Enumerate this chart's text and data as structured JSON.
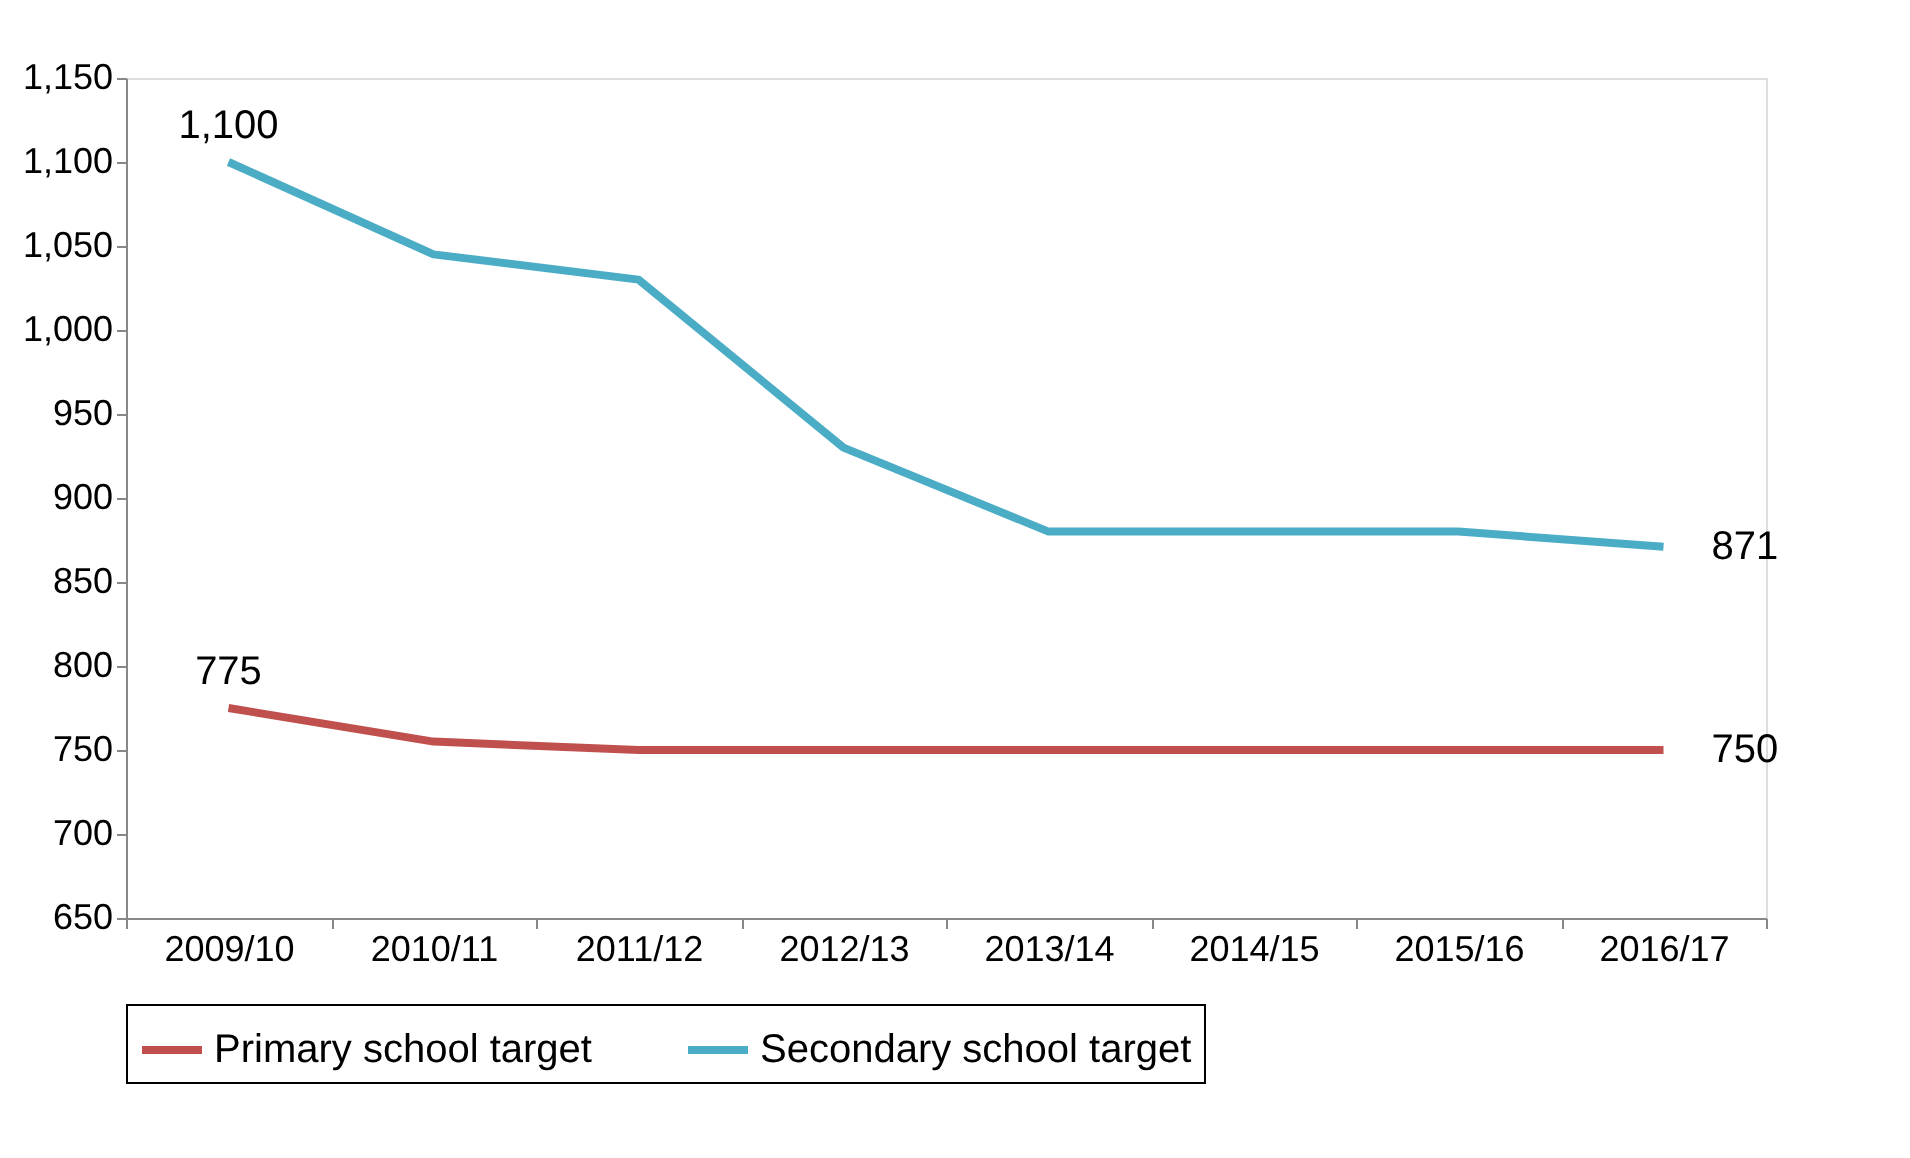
{
  "chart_data": {
    "type": "line",
    "categories": [
      "2009/10",
      "2010/11",
      "2011/12",
      "2012/13",
      "2013/14",
      "2014/15",
      "2015/16",
      "2016/17"
    ],
    "series": [
      {
        "name": "Primary school target",
        "color": "#c0504d",
        "values": [
          775,
          755,
          750,
          750,
          750,
          750,
          750,
          750
        ],
        "value_labels": [
          "775",
          null,
          null,
          null,
          null,
          null,
          null,
          "750"
        ]
      },
      {
        "name": "Secondary school target",
        "color": "#4bacc6",
        "values": [
          1100,
          1045,
          1030,
          930,
          880,
          880,
          880,
          871
        ],
        "value_labels": [
          "1,100",
          null,
          null,
          null,
          null,
          null,
          null,
          "871"
        ]
      }
    ],
    "ylim": [
      650,
      1150
    ],
    "yticks": [
      650,
      700,
      750,
      800,
      850,
      900,
      950,
      {
        "value": 1000,
        "label": "1,000"
      },
      {
        "value": 1050,
        "label": "1,050"
      },
      {
        "value": 1100,
        "label": "1,100"
      },
      {
        "value": 1150,
        "label": "1,150"
      }
    ],
    "grid": false,
    "legend": "bottom",
    "marker": "none",
    "line_style": "solid"
  }
}
